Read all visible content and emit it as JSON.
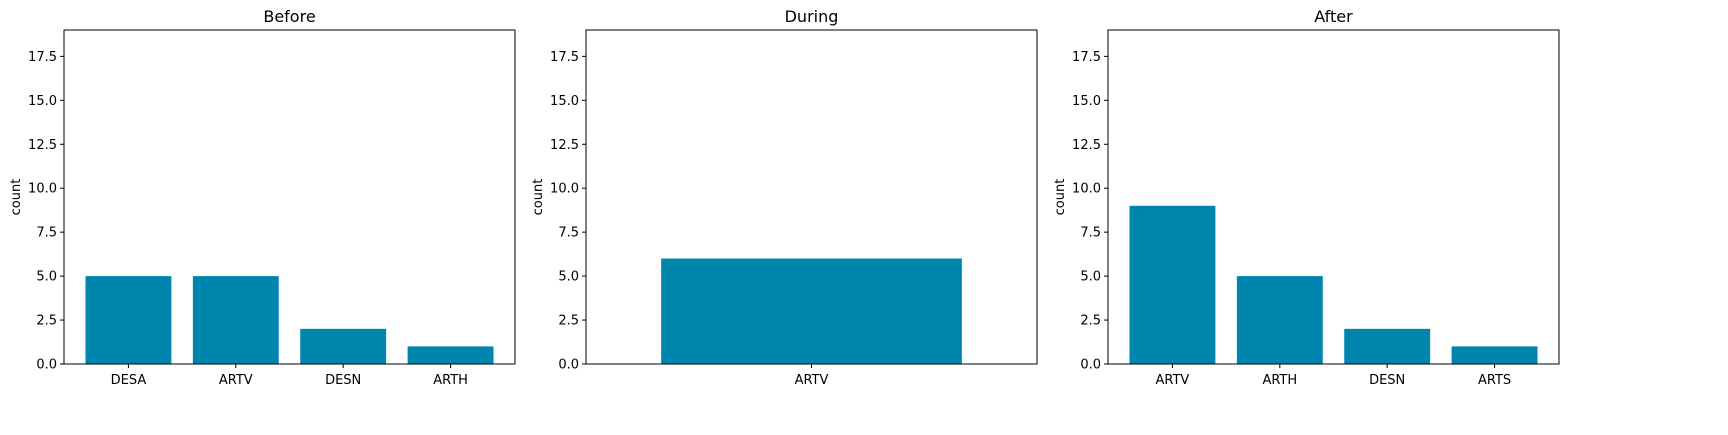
{
  "colors": {
    "bar": "#0086ad",
    "axis": "#000000",
    "background": "#ffffff"
  },
  "chart_data": [
    {
      "type": "bar",
      "title": "Before",
      "xlabel": "",
      "ylabel": "count",
      "ylim": [
        0,
        19
      ],
      "yticks": [
        "0.0",
        "2.5",
        "5.0",
        "7.5",
        "10.0",
        "12.5",
        "15.0",
        "17.5"
      ],
      "categories": [
        "DESA",
        "ARTV",
        "DESN",
        "ARTH"
      ],
      "values": [
        5,
        5,
        2,
        1
      ],
      "grid": false
    },
    {
      "type": "bar",
      "title": "During",
      "xlabel": "",
      "ylabel": "count",
      "ylim": [
        0,
        19
      ],
      "yticks": [
        "0.0",
        "2.5",
        "5.0",
        "7.5",
        "10.0",
        "12.5",
        "15.0",
        "17.5"
      ],
      "categories": [
        "ARTV"
      ],
      "values": [
        6
      ],
      "grid": false
    },
    {
      "type": "bar",
      "title": "After",
      "xlabel": "",
      "ylabel": "count",
      "ylim": [
        0,
        19
      ],
      "yticks": [
        "0.0",
        "2.5",
        "5.0",
        "7.5",
        "10.0",
        "12.5",
        "15.0",
        "17.5"
      ],
      "categories": [
        "ARTV",
        "ARTH",
        "DESN",
        "ARTS"
      ],
      "values": [
        9,
        5,
        2,
        1
      ],
      "grid": false
    }
  ]
}
